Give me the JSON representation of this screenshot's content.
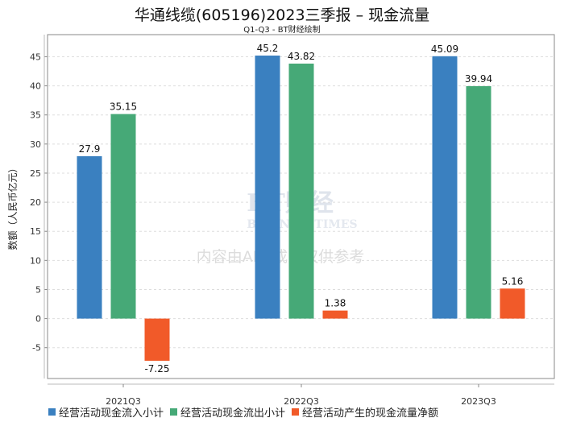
{
  "title": "华通线缆(605196)2023三季报 – 现金流量",
  "subtitle": "Q1-Q3 - BT财经绘制",
  "watermark": {
    "brand": "BT财经",
    "brand_en": "BUSINESSTIMES",
    "notice": "内容由AI生成，仅供参考"
  },
  "chart_data": {
    "type": "bar",
    "title": "华通线缆(605196)2023三季报 – 现金流量",
    "subtitle": "Q1-Q3 - BT财经绘制",
    "xlabel": "",
    "ylabel": "数额（人民币亿元）",
    "categories": [
      "2021Q3",
      "2022Q3",
      "2023Q3"
    ],
    "ylim": [
      -10.3,
      48.8
    ],
    "yticks": [
      -5,
      0,
      5,
      10,
      15,
      20,
      25,
      30,
      35,
      40,
      45
    ],
    "grid": true,
    "legend_position": "bottom",
    "series": [
      {
        "name": "经营活动现金流入小计",
        "color": "#3a80c0",
        "values": [
          27.9,
          45.2,
          45.09
        ]
      },
      {
        "name": "经营活动现金流出小计",
        "color": "#46a977",
        "values": [
          35.15,
          43.82,
          39.94
        ]
      },
      {
        "name": "经营活动产生的现金流量净额",
        "color": "#f15a29",
        "values": [
          -7.25,
          1.38,
          5.16
        ]
      }
    ]
  }
}
